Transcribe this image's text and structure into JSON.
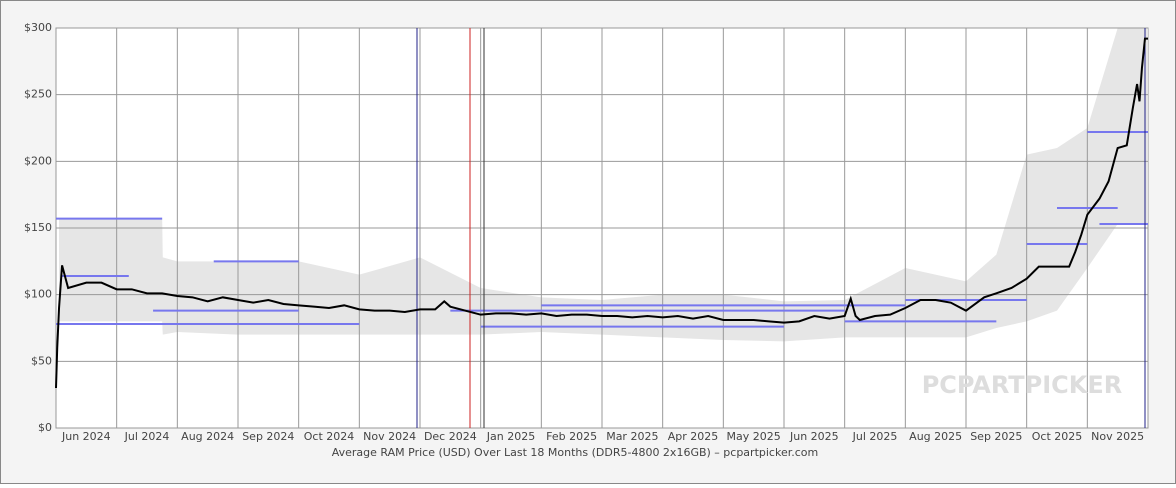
{
  "chart_data": {
    "type": "line",
    "xlabel": "Average RAM Price (USD) Over Last 18 Months (DDR5-4800 2x16GB) – pcpartpicker.com",
    "watermark": "PCPARTPICKER",
    "xlim": [
      0,
      18
    ],
    "ylim": [
      0,
      300
    ],
    "xticks": [
      {
        "value": 0,
        "label": "Jun 2024"
      },
      {
        "value": 1,
        "label": "Jul 2024"
      },
      {
        "value": 2,
        "label": "Aug 2024"
      },
      {
        "value": 3,
        "label": "Sep 2024"
      },
      {
        "value": 4,
        "label": "Oct 2024"
      },
      {
        "value": 5,
        "label": "Nov 2024"
      },
      {
        "value": 6,
        "label": "Dec 2024"
      },
      {
        "value": 7,
        "label": "Jan 2025"
      },
      {
        "value": 8,
        "label": "Feb 2025"
      },
      {
        "value": 9,
        "label": "Mar 2025"
      },
      {
        "value": 10,
        "label": "Apr 2025"
      },
      {
        "value": 11,
        "label": "May 2025"
      },
      {
        "value": 12,
        "label": "Jun 2025"
      },
      {
        "value": 13,
        "label": "Jul 2025"
      },
      {
        "value": 14,
        "label": "Aug 2025"
      },
      {
        "value": 15,
        "label": "Sep 2025"
      },
      {
        "value": 16,
        "label": "Oct 2025"
      },
      {
        "value": 17,
        "label": "Nov 2025"
      }
    ],
    "yticks": [
      {
        "value": 0,
        "label": "$0"
      },
      {
        "value": 50,
        "label": "$50"
      },
      {
        "value": 100,
        "label": "$100"
      },
      {
        "value": 150,
        "label": "$150"
      },
      {
        "value": 200,
        "label": "$200"
      },
      {
        "value": 250,
        "label": "$250"
      },
      {
        "value": 300,
        "label": "$300"
      }
    ],
    "grid": true,
    "band": {
      "color": "#e6e6e6",
      "x": [
        0.05,
        1.75,
        1.76,
        2.0,
        3.0,
        4.0,
        5.0,
        6.0,
        7.0,
        8.0,
        9.0,
        10.0,
        11.0,
        12.0,
        13.0,
        14.0,
        15.0,
        15.5,
        16.0,
        16.5,
        17.0,
        17.5,
        18.0
      ],
      "high": [
        157,
        157,
        128,
        125,
        125,
        125,
        115,
        128,
        105,
        98,
        96,
        100,
        100,
        95,
        96,
        120,
        110,
        130,
        205,
        210,
        225,
        300,
        300
      ],
      "low": [
        80,
        80,
        70,
        72,
        70,
        70,
        70,
        70,
        70,
        72,
        70,
        68,
        66,
        65,
        68,
        68,
        68,
        75,
        80,
        88,
        120,
        153,
        153
      ]
    },
    "segments_color": "#7777ee",
    "segments": [
      {
        "x": [
          0,
          1.75
        ],
        "y": 157
      },
      {
        "x": [
          0.1,
          1.2
        ],
        "y": 114
      },
      {
        "x": [
          1.6,
          4.0
        ],
        "y": 88
      },
      {
        "x": [
          6.5,
          13
        ],
        "y": 88
      },
      {
        "x": [
          7,
          12
        ],
        "y": 76
      },
      {
        "x": [
          13,
          15.5
        ],
        "y": 80
      },
      {
        "x": [
          16,
          17
        ],
        "y": 138
      },
      {
        "x": [
          16.5,
          17.5
        ],
        "y": 165
      },
      {
        "x": [
          17,
          18
        ],
        "y": 222
      },
      {
        "x": [
          17.2,
          18
        ],
        "y": 153
      },
      {
        "x": [
          2.6,
          4
        ],
        "y": 125
      },
      {
        "x": [
          0,
          5
        ],
        "y": 78
      },
      {
        "x": [
          8,
          14
        ],
        "y": 92
      },
      {
        "x": [
          14,
          16
        ],
        "y": 96
      }
    ],
    "series": [
      {
        "color": "#000000",
        "x": [
          0.0,
          0.02,
          0.05,
          0.1,
          0.2,
          0.5,
          0.75,
          1.0,
          1.25,
          1.5,
          1.75,
          2.0,
          2.25,
          2.5,
          2.75,
          3.0,
          3.25,
          3.5,
          3.75,
          4.0,
          4.25,
          4.5,
          4.75,
          5.0,
          5.25,
          5.5,
          5.75,
          6.0,
          6.25,
          6.4,
          6.5,
          6.75,
          7.0,
          7.25,
          7.5,
          7.75,
          8.0,
          8.25,
          8.5,
          8.75,
          9.0,
          9.25,
          9.5,
          9.75,
          10.0,
          10.25,
          10.5,
          10.75,
          11.0,
          11.25,
          11.5,
          11.75,
          12.0,
          12.25,
          12.5,
          12.75,
          13.0,
          13.1,
          13.18,
          13.25,
          13.5,
          13.75,
          14.0,
          14.25,
          14.5,
          14.75,
          15.0,
          15.3,
          15.5,
          15.75,
          16.0,
          16.2,
          16.5,
          16.7,
          16.8,
          16.9,
          17.0,
          17.2,
          17.35,
          17.5,
          17.65,
          17.75,
          17.82,
          17.86,
          17.9,
          17.95,
          18.0
        ],
        "values": [
          30,
          60,
          90,
          122,
          105,
          109,
          109,
          104,
          104,
          101,
          101,
          99,
          98,
          95,
          98,
          96,
          94,
          96,
          93,
          92,
          91,
          90,
          92,
          89,
          88,
          88,
          87,
          89,
          89,
          95,
          91,
          88,
          85,
          86,
          86,
          85,
          86,
          84,
          85,
          85,
          84,
          84,
          83,
          84,
          83,
          84,
          82,
          84,
          81,
          81,
          81,
          80,
          79,
          80,
          84,
          82,
          84,
          97,
          84,
          81,
          84,
          85,
          90,
          96,
          96,
          94,
          88,
          98,
          101,
          105,
          112,
          121,
          121,
          121,
          132,
          145,
          160,
          172,
          185,
          210,
          212,
          240,
          258,
          245,
          270,
          292,
          292
        ]
      }
    ]
  }
}
